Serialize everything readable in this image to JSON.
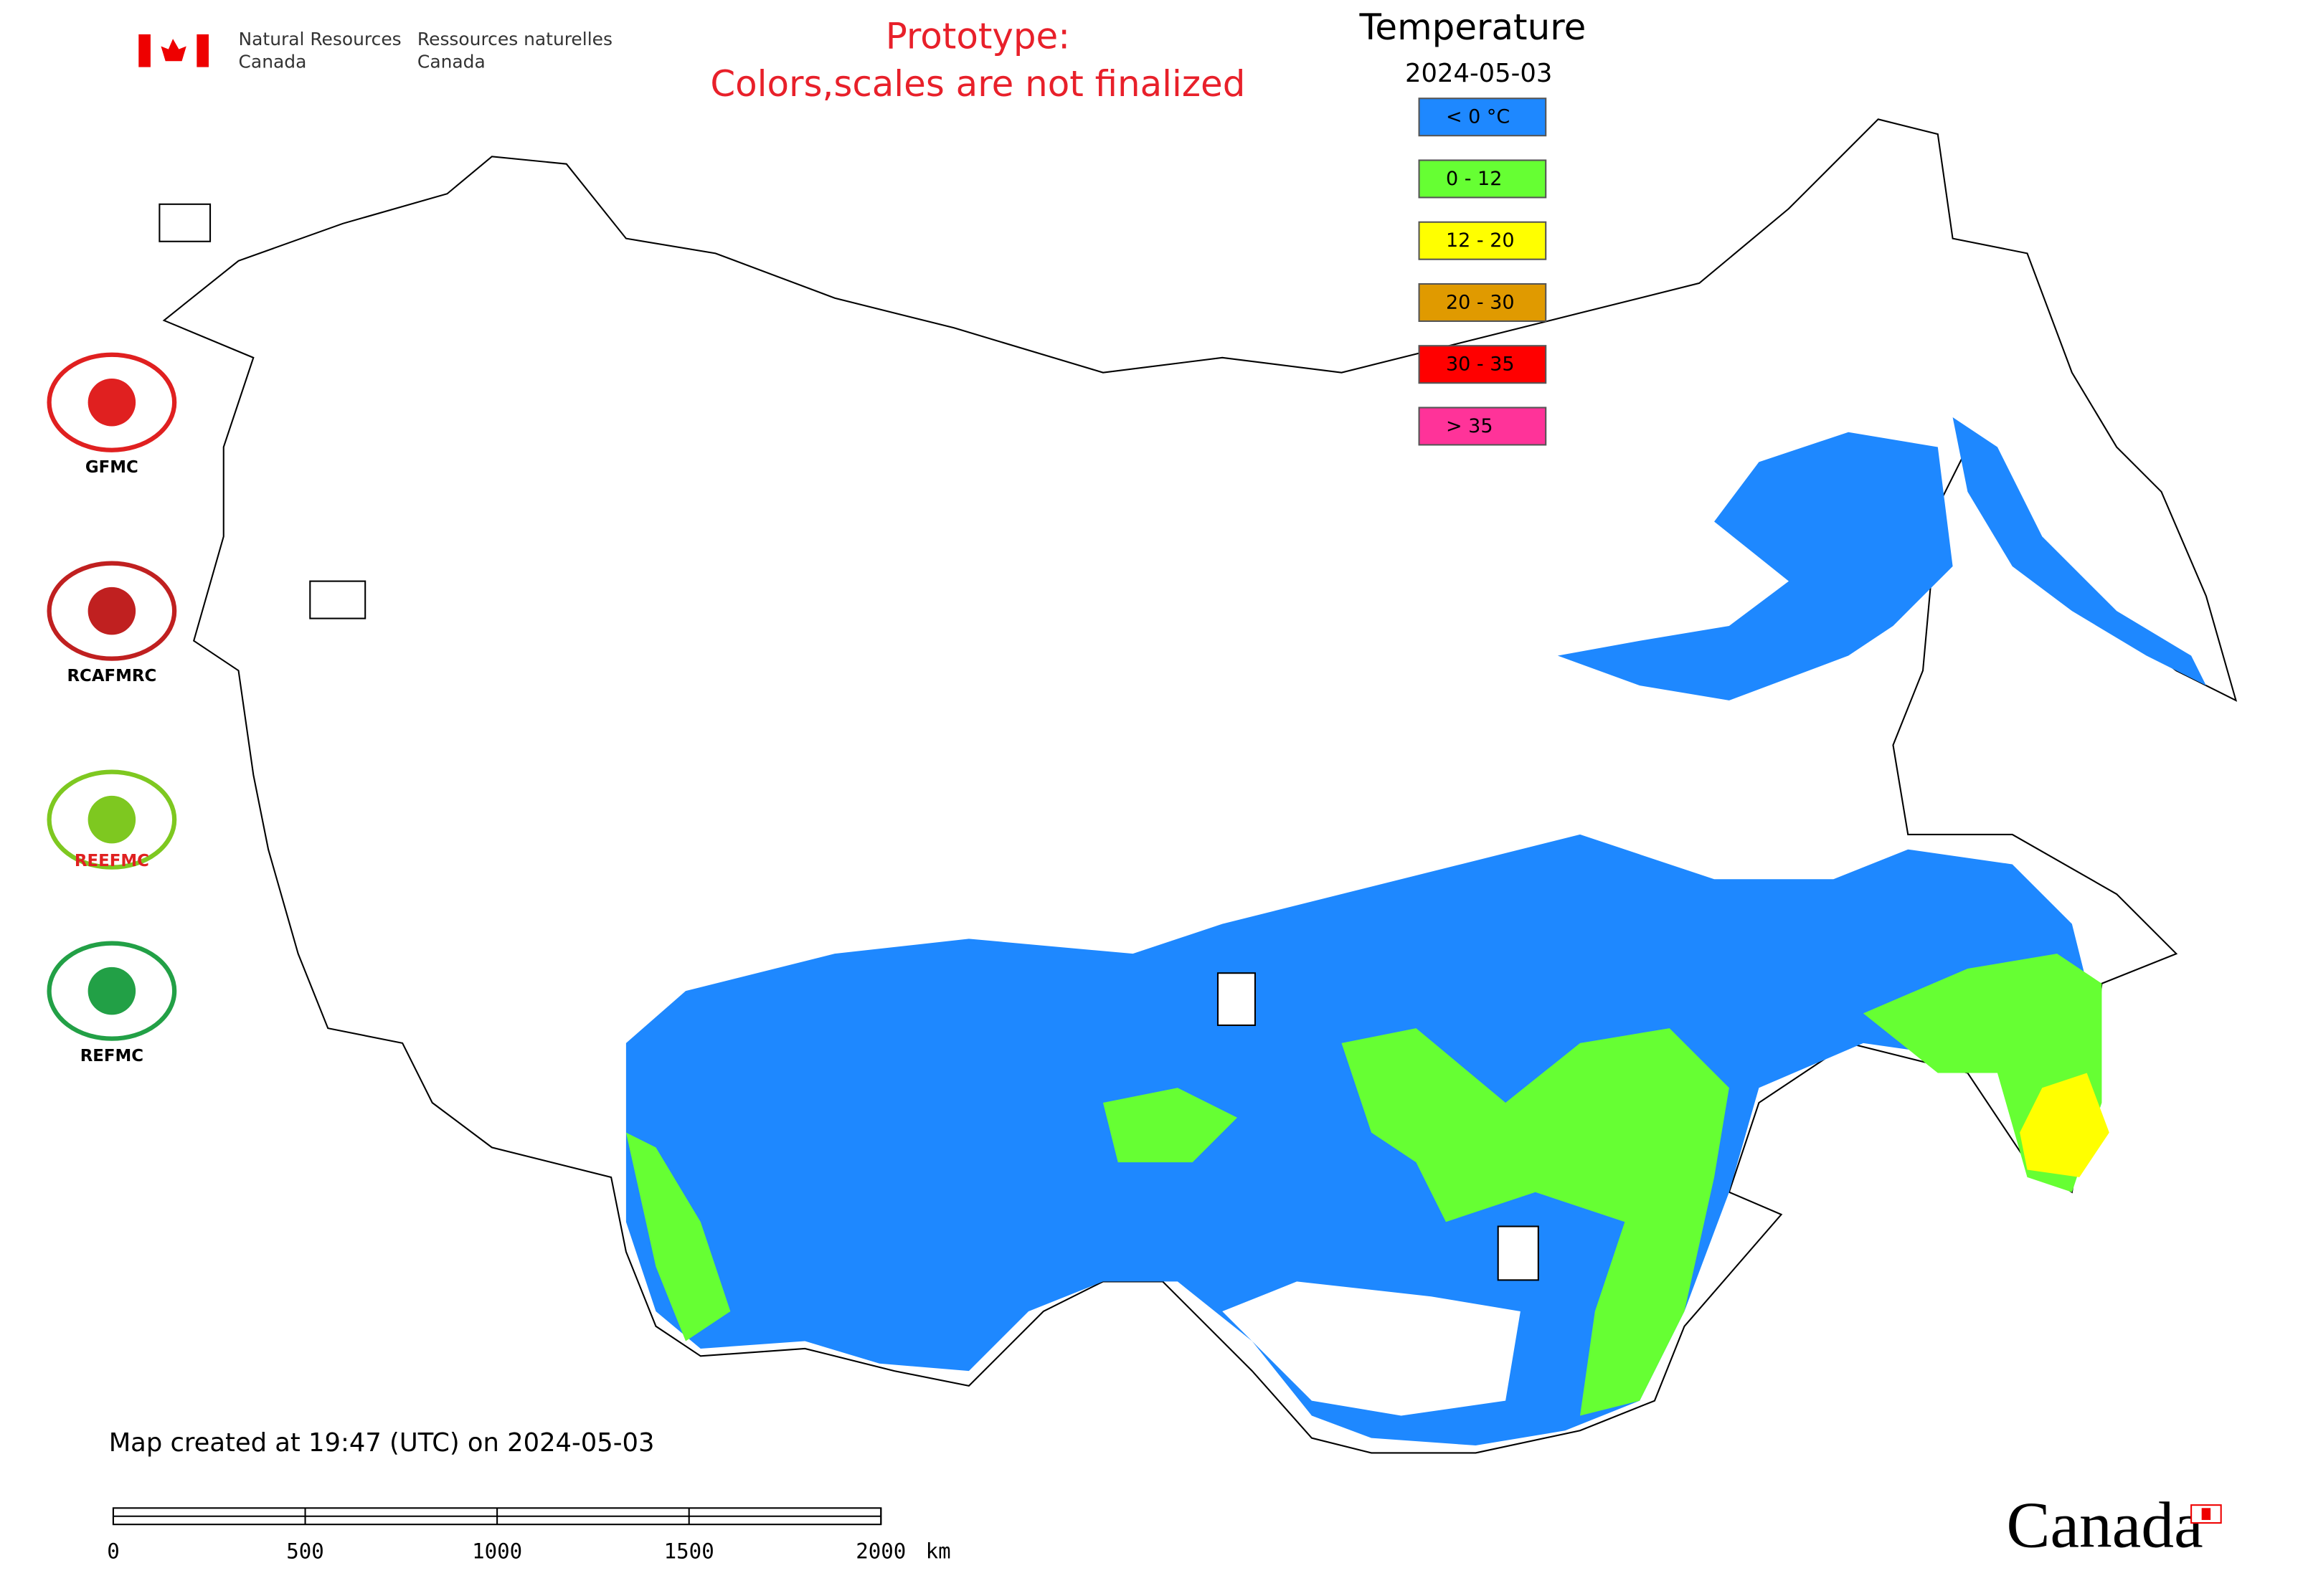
{
  "header": {
    "agency_en": [
      "Natural Resources",
      "Canada"
    ],
    "agency_fr": [
      "Ressources naturelles",
      "Canada"
    ]
  },
  "notice": [
    "Prototype:",
    "Colors,scales are not finalized"
  ],
  "legend": {
    "title": "Temperature",
    "date": "2024-05-03",
    "items": [
      {
        "label": "< 0 °C",
        "color": "#1e88ff"
      },
      {
        "label": "0 - 12",
        "color": "#66ff33"
      },
      {
        "label": "12 - 20",
        "color": "#ffff00"
      },
      {
        "label": "20 - 30",
        "color": "#e09a00"
      },
      {
        "label": "30 - 35",
        "color": "#ff0000"
      },
      {
        "label": "> 35",
        "color": "#ff3399"
      }
    ]
  },
  "logos": [
    "GFMC",
    "RCAFMRC",
    "REEFMC",
    "REFMC"
  ],
  "footer": "Map created at 19:47 (UTC) on 2024-05-03",
  "scale_bar": {
    "ticks": [
      0,
      500,
      1000,
      1500,
      2000
    ],
    "unit": "km"
  },
  "wordmark": "Canada"
}
